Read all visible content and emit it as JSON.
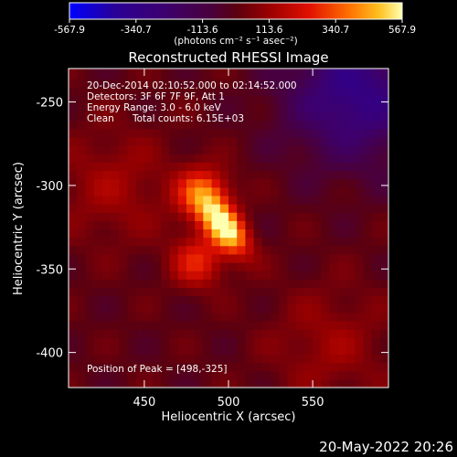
{
  "chart_data": {
    "type": "heatmap",
    "title": "Reconstructed RHESSI Image",
    "xlabel": "Heliocentric X (arcsec)",
    "ylabel": "Heliocentric Y (arcsec)",
    "xlim": [
      405,
      595
    ],
    "ylim": [
      -421,
      -230
    ],
    "xticks": [
      450,
      500,
      550
    ],
    "yticks": [
      -250,
      -300,
      -350,
      -400
    ],
    "grid": false,
    "colorbar": {
      "location": "top",
      "range": [
        -567.9,
        567.9
      ],
      "ticks": [
        "-567.9",
        "-340.7",
        "-113.6",
        "113.6",
        "340.7",
        "567.9"
      ],
      "unit_label": "(photons cm⁻² s⁻¹ asec⁻²)"
    },
    "annotations": {
      "time_range": "20-Dec-2014 02:10:52.000 to 02:14:52.000",
      "detectors": "Detectors: 3F 6F 7F 9F, Att 1",
      "energy": "Energy Range: 3.0 - 6.0 keV",
      "clean_label": "Clean",
      "total_counts": "Total counts: 6.15E+03",
      "peak": "Position of Peak = [498,-325]"
    },
    "peak_position": [
      498,
      -325
    ],
    "sources": [
      {
        "x": 498,
        "y": -325,
        "peak": 567.9
      },
      {
        "x": 485,
        "y": -305,
        "peak": 360
      },
      {
        "x": 482,
        "y": -345,
        "peak": 260
      },
      {
        "x": 432,
        "y": -300,
        "peak": 120
      },
      {
        "x": 560,
        "y": -395,
        "peak": 110
      }
    ]
  },
  "footer": {
    "timestamp": "20-May-2022 20:26"
  }
}
